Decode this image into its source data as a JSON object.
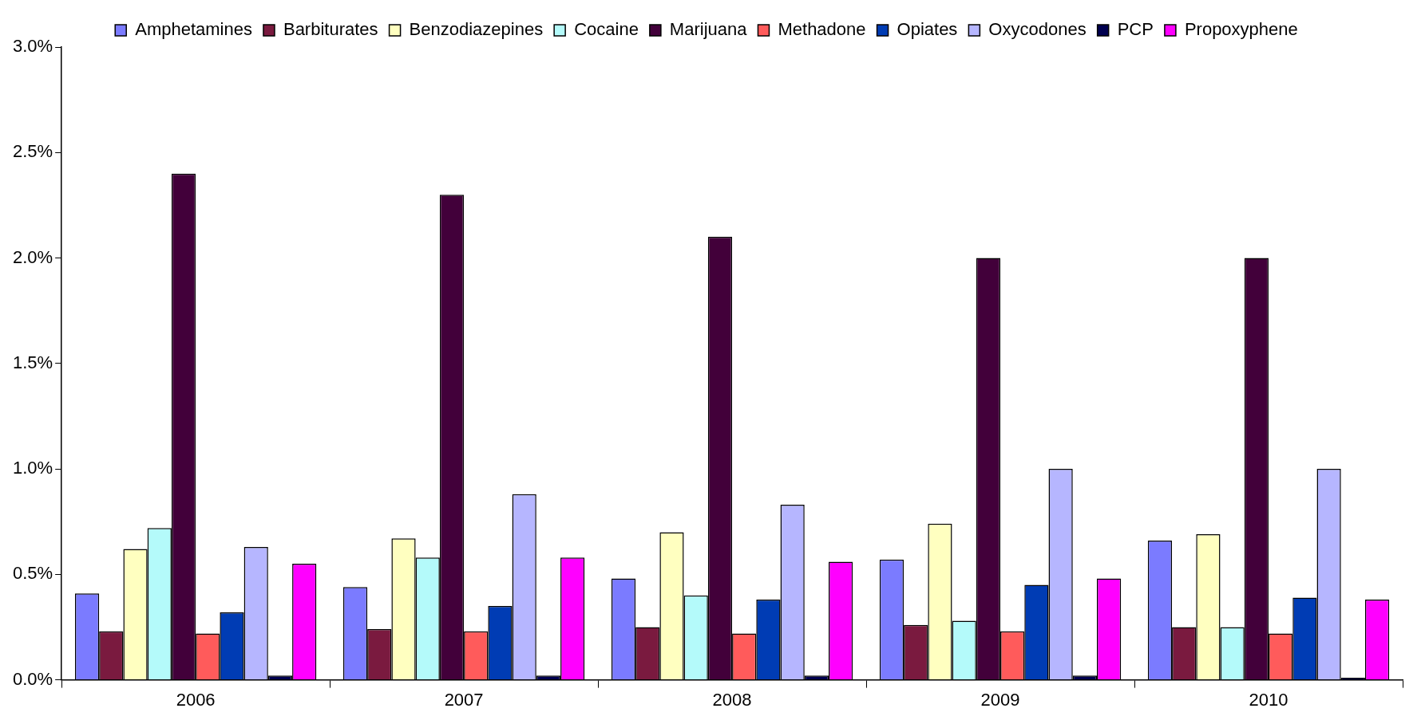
{
  "chart_data": {
    "type": "bar",
    "categories": [
      "2006",
      "2007",
      "2008",
      "2009",
      "2010"
    ],
    "series": [
      {
        "name": "Amphetamines",
        "color": "#7b7bff",
        "values": [
          0.41,
          0.44,
          0.48,
          0.57,
          0.66
        ]
      },
      {
        "name": "Barbiturates",
        "color": "#7a1a3f",
        "values": [
          0.23,
          0.24,
          0.25,
          0.26,
          0.25
        ]
      },
      {
        "name": "Benzodiazepines",
        "color": "#ffffc0",
        "values": [
          0.62,
          0.67,
          0.7,
          0.74,
          0.69
        ]
      },
      {
        "name": "Cocaine",
        "color": "#b4fafa",
        "values": [
          0.72,
          0.58,
          0.4,
          0.28,
          0.25
        ]
      },
      {
        "name": "Marijuana",
        "color": "#42003a",
        "values": [
          2.4,
          2.3,
          2.1,
          2.0,
          2.0
        ]
      },
      {
        "name": "Methadone",
        "color": "#ff5b5b",
        "values": [
          0.22,
          0.23,
          0.22,
          0.23,
          0.22
        ]
      },
      {
        "name": "Opiates",
        "color": "#003cb4",
        "values": [
          0.32,
          0.35,
          0.38,
          0.45,
          0.39
        ]
      },
      {
        "name": "Oxycodones",
        "color": "#b6b6ff",
        "values": [
          0.63,
          0.88,
          0.83,
          1.0,
          1.0
        ]
      },
      {
        "name": "PCP",
        "color": "#000050",
        "values": [
          0.02,
          0.02,
          0.02,
          0.02,
          0.01
        ]
      },
      {
        "name": "Propoxyphene",
        "color": "#ff00ff",
        "values": [
          0.55,
          0.58,
          0.56,
          0.48,
          0.38
        ]
      }
    ],
    "ylim": [
      0,
      3
    ],
    "yticks": [
      {
        "value": 0,
        "label": "0.0%"
      },
      {
        "value": 0.5,
        "label": "0.5%"
      },
      {
        "value": 1,
        "label": "1.0%"
      },
      {
        "value": 1.5,
        "label": "1.5%"
      },
      {
        "value": 2,
        "label": "2.0%"
      },
      {
        "value": 2.5,
        "label": "2.5%"
      },
      {
        "value": 3,
        "label": "3.0%"
      }
    ],
    "grid": false,
    "legend": "top"
  }
}
